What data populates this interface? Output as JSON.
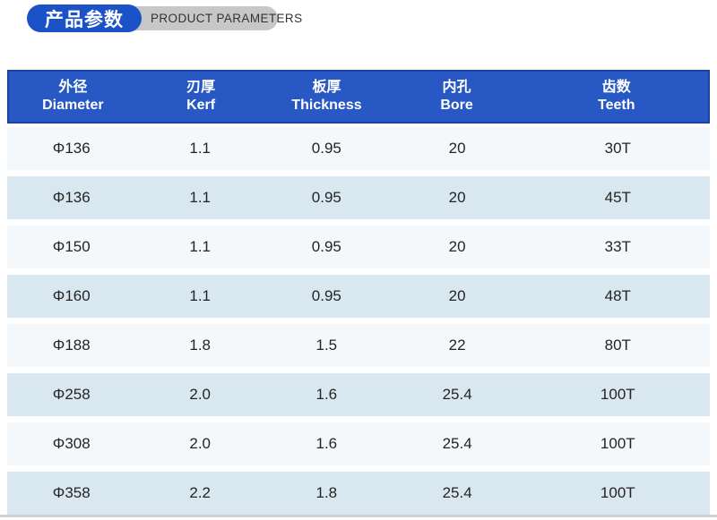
{
  "colors": {
    "accent_blue": "#1C52C8",
    "gray_pill": "#C7C7C7",
    "header_bg": "#2758C3",
    "header_border": "#1D429F",
    "row_odd_bg": "#F4F8FB",
    "row_even_bg": "#D9E7F1",
    "divider": "#CCD3D8"
  },
  "badge": {
    "title_cn": "产品参数",
    "title_en": "PRODUCT PARAMETERS"
  },
  "table": {
    "columns": [
      {
        "cn": "外径",
        "en": "Diameter"
      },
      {
        "cn": "刃厚",
        "en": "Kerf"
      },
      {
        "cn": "板厚",
        "en": "Thickness"
      },
      {
        "cn": "内孔",
        "en": "Bore"
      },
      {
        "cn": "齿数",
        "en": "Teeth"
      }
    ],
    "rows": [
      [
        "Φ136",
        "1.1",
        "0.95",
        "20",
        "30T"
      ],
      [
        "Φ136",
        "1.1",
        "0.95",
        "20",
        "45T"
      ],
      [
        "Φ150",
        "1.1",
        "0.95",
        "20",
        "33T"
      ],
      [
        "Φ160",
        "1.1",
        "0.95",
        "20",
        "48T"
      ],
      [
        "Φ188",
        "1.8",
        "1.5",
        "22",
        "80T"
      ],
      [
        "Φ258",
        "2.0",
        "1.6",
        "25.4",
        "100T"
      ],
      [
        "Φ308",
        "2.0",
        "1.6",
        "25.4",
        "100T"
      ],
      [
        "Φ358",
        "2.2",
        "1.8",
        "25.4",
        "100T"
      ]
    ]
  }
}
